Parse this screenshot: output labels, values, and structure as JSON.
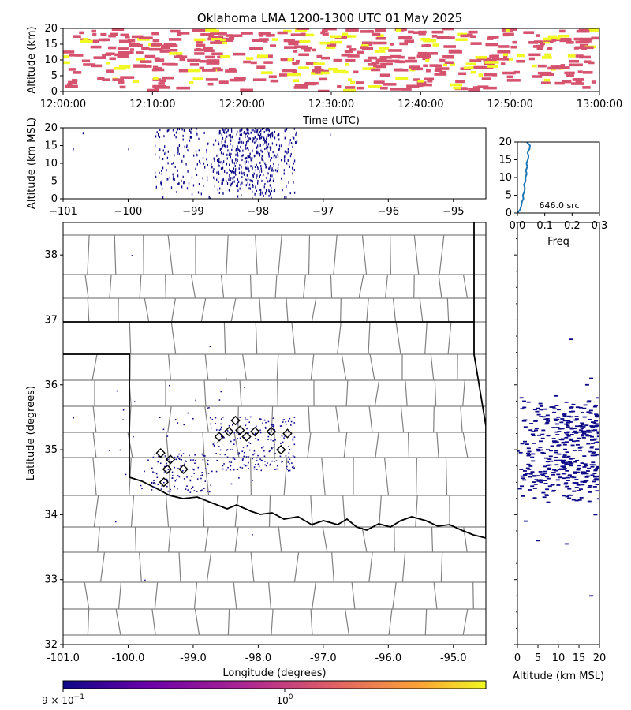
{
  "title": "Oklahoma LMA 1200-1300 UTC 01 May 2025",
  "colors": {
    "points_dark": "#0d0887",
    "time_points_pink": "#d5536f",
    "time_points_yellow": "#f0f921",
    "histogram_line": "#1f77b4",
    "county_lines": "#808080",
    "state_lines": "#000000",
    "colorbar_stops": [
      "#0d0887",
      "#6a00a8",
      "#b12a90",
      "#e16462",
      "#fca636",
      "#f0f921"
    ]
  },
  "chart_data": [
    {
      "id": "time_height",
      "type": "scatter",
      "xlabel": "Time (UTC)",
      "ylabel": "Altitude (km)",
      "x_ticks": [
        "12:00:00",
        "12:10:00",
        "12:20:00",
        "12:30:00",
        "12:40:00",
        "12:50:00",
        "13:00:00"
      ],
      "x_range": [
        "12:00:00",
        "13:00:00"
      ],
      "y_ticks": [
        "0",
        "5",
        "10",
        "15",
        "20"
      ],
      "ylim": [
        0,
        20
      ],
      "grid": false,
      "note_points": "dense horizontal dashes of sources, colored pink/yellow by the colorbar scale"
    },
    {
      "id": "lon_height",
      "type": "scatter",
      "xlabel": "",
      "ylabel": "Altitude (km MSL)",
      "x_ticks": [
        "−101",
        "−100",
        "−99",
        "−98",
        "−97",
        "−96",
        "−95"
      ],
      "xlim": [
        -101,
        -94.5
      ],
      "y_ticks": [
        "0",
        "5",
        "10",
        "15",
        "20"
      ],
      "ylim": [
        0,
        20
      ],
      "source_longitude_band": [
        -99.6,
        -97.4
      ]
    },
    {
      "id": "altitude_histogram",
      "type": "line",
      "xlabel": "Freq",
      "x_ticks": [
        "0.0",
        "0.1",
        "0.2",
        "0.3"
      ],
      "xlim": [
        0,
        0.3
      ],
      "y_ticks": [
        "0",
        "5",
        "10",
        "15",
        "20"
      ],
      "ylim": [
        0,
        20
      ],
      "annotation": "646.0 src",
      "points": [
        {
          "freq": 0.0,
          "alt": 0.0
        },
        {
          "freq": 0.005,
          "alt": 0.5
        },
        {
          "freq": 0.01,
          "alt": 1.0
        },
        {
          "freq": 0.014,
          "alt": 2.0
        },
        {
          "freq": 0.016,
          "alt": 3.0
        },
        {
          "freq": 0.022,
          "alt": 4.0
        },
        {
          "freq": 0.02,
          "alt": 5.0
        },
        {
          "freq": 0.025,
          "alt": 6.0
        },
        {
          "freq": 0.027,
          "alt": 7.0
        },
        {
          "freq": 0.024,
          "alt": 8.0
        },
        {
          "freq": 0.03,
          "alt": 9.0
        },
        {
          "freq": 0.029,
          "alt": 10.0
        },
        {
          "freq": 0.034,
          "alt": 11.0
        },
        {
          "freq": 0.031,
          "alt": 12.0
        },
        {
          "freq": 0.036,
          "alt": 13.0
        },
        {
          "freq": 0.033,
          "alt": 14.0
        },
        {
          "freq": 0.038,
          "alt": 15.0
        },
        {
          "freq": 0.041,
          "alt": 16.0
        },
        {
          "freq": 0.037,
          "alt": 17.0
        },
        {
          "freq": 0.044,
          "alt": 18.0
        },
        {
          "freq": 0.046,
          "alt": 19.0
        },
        {
          "freq": 0.034,
          "alt": 20.0
        }
      ]
    },
    {
      "id": "plan_view",
      "type": "scatter",
      "xlabel": "Longitude (degrees)",
      "ylabel": "Latitude (degrees)",
      "x_ticks": [
        "-101.0",
        "-100.0",
        "-99.0",
        "-98.0",
        "-97.0",
        "-96.0",
        "-95.0"
      ],
      "xlim": [
        -101,
        -94.5
      ],
      "y_ticks": [
        "32",
        "33",
        "34",
        "35",
        "36",
        "37",
        "38"
      ],
      "ylim": [
        32,
        38.5
      ],
      "stations": [
        {
          "lon": -98.35,
          "lat": 35.45
        },
        {
          "lon": -98.45,
          "lat": 35.28
        },
        {
          "lon": -98.28,
          "lat": 35.3
        },
        {
          "lon": -98.05,
          "lat": 35.28
        },
        {
          "lon": -97.8,
          "lat": 35.28
        },
        {
          "lon": -98.6,
          "lat": 35.2
        },
        {
          "lon": -98.18,
          "lat": 35.2
        },
        {
          "lon": -97.55,
          "lat": 35.25
        },
        {
          "lon": -97.65,
          "lat": 35.0
        },
        {
          "lon": -99.15,
          "lat": 34.7
        },
        {
          "lon": -99.35,
          "lat": 34.85
        },
        {
          "lon": -99.4,
          "lat": 34.7
        },
        {
          "lon": -99.5,
          "lat": 34.95
        },
        {
          "lon": -99.45,
          "lat": 34.5
        }
      ]
    },
    {
      "id": "altitude_latitude",
      "type": "scatter",
      "xlabel": "Altitude (km MSL)",
      "x_ticks": [
        "0",
        "5",
        "10",
        "15",
        "20"
      ],
      "xlim": [
        0,
        20
      ],
      "ylim": [
        32,
        38.5
      ]
    },
    {
      "id": "colorbar",
      "type": "heatmap",
      "tick_labels": [
        "9 × 10",
        "10"
      ],
      "tick_exponents": [
        "−1",
        "0"
      ]
    }
  ]
}
